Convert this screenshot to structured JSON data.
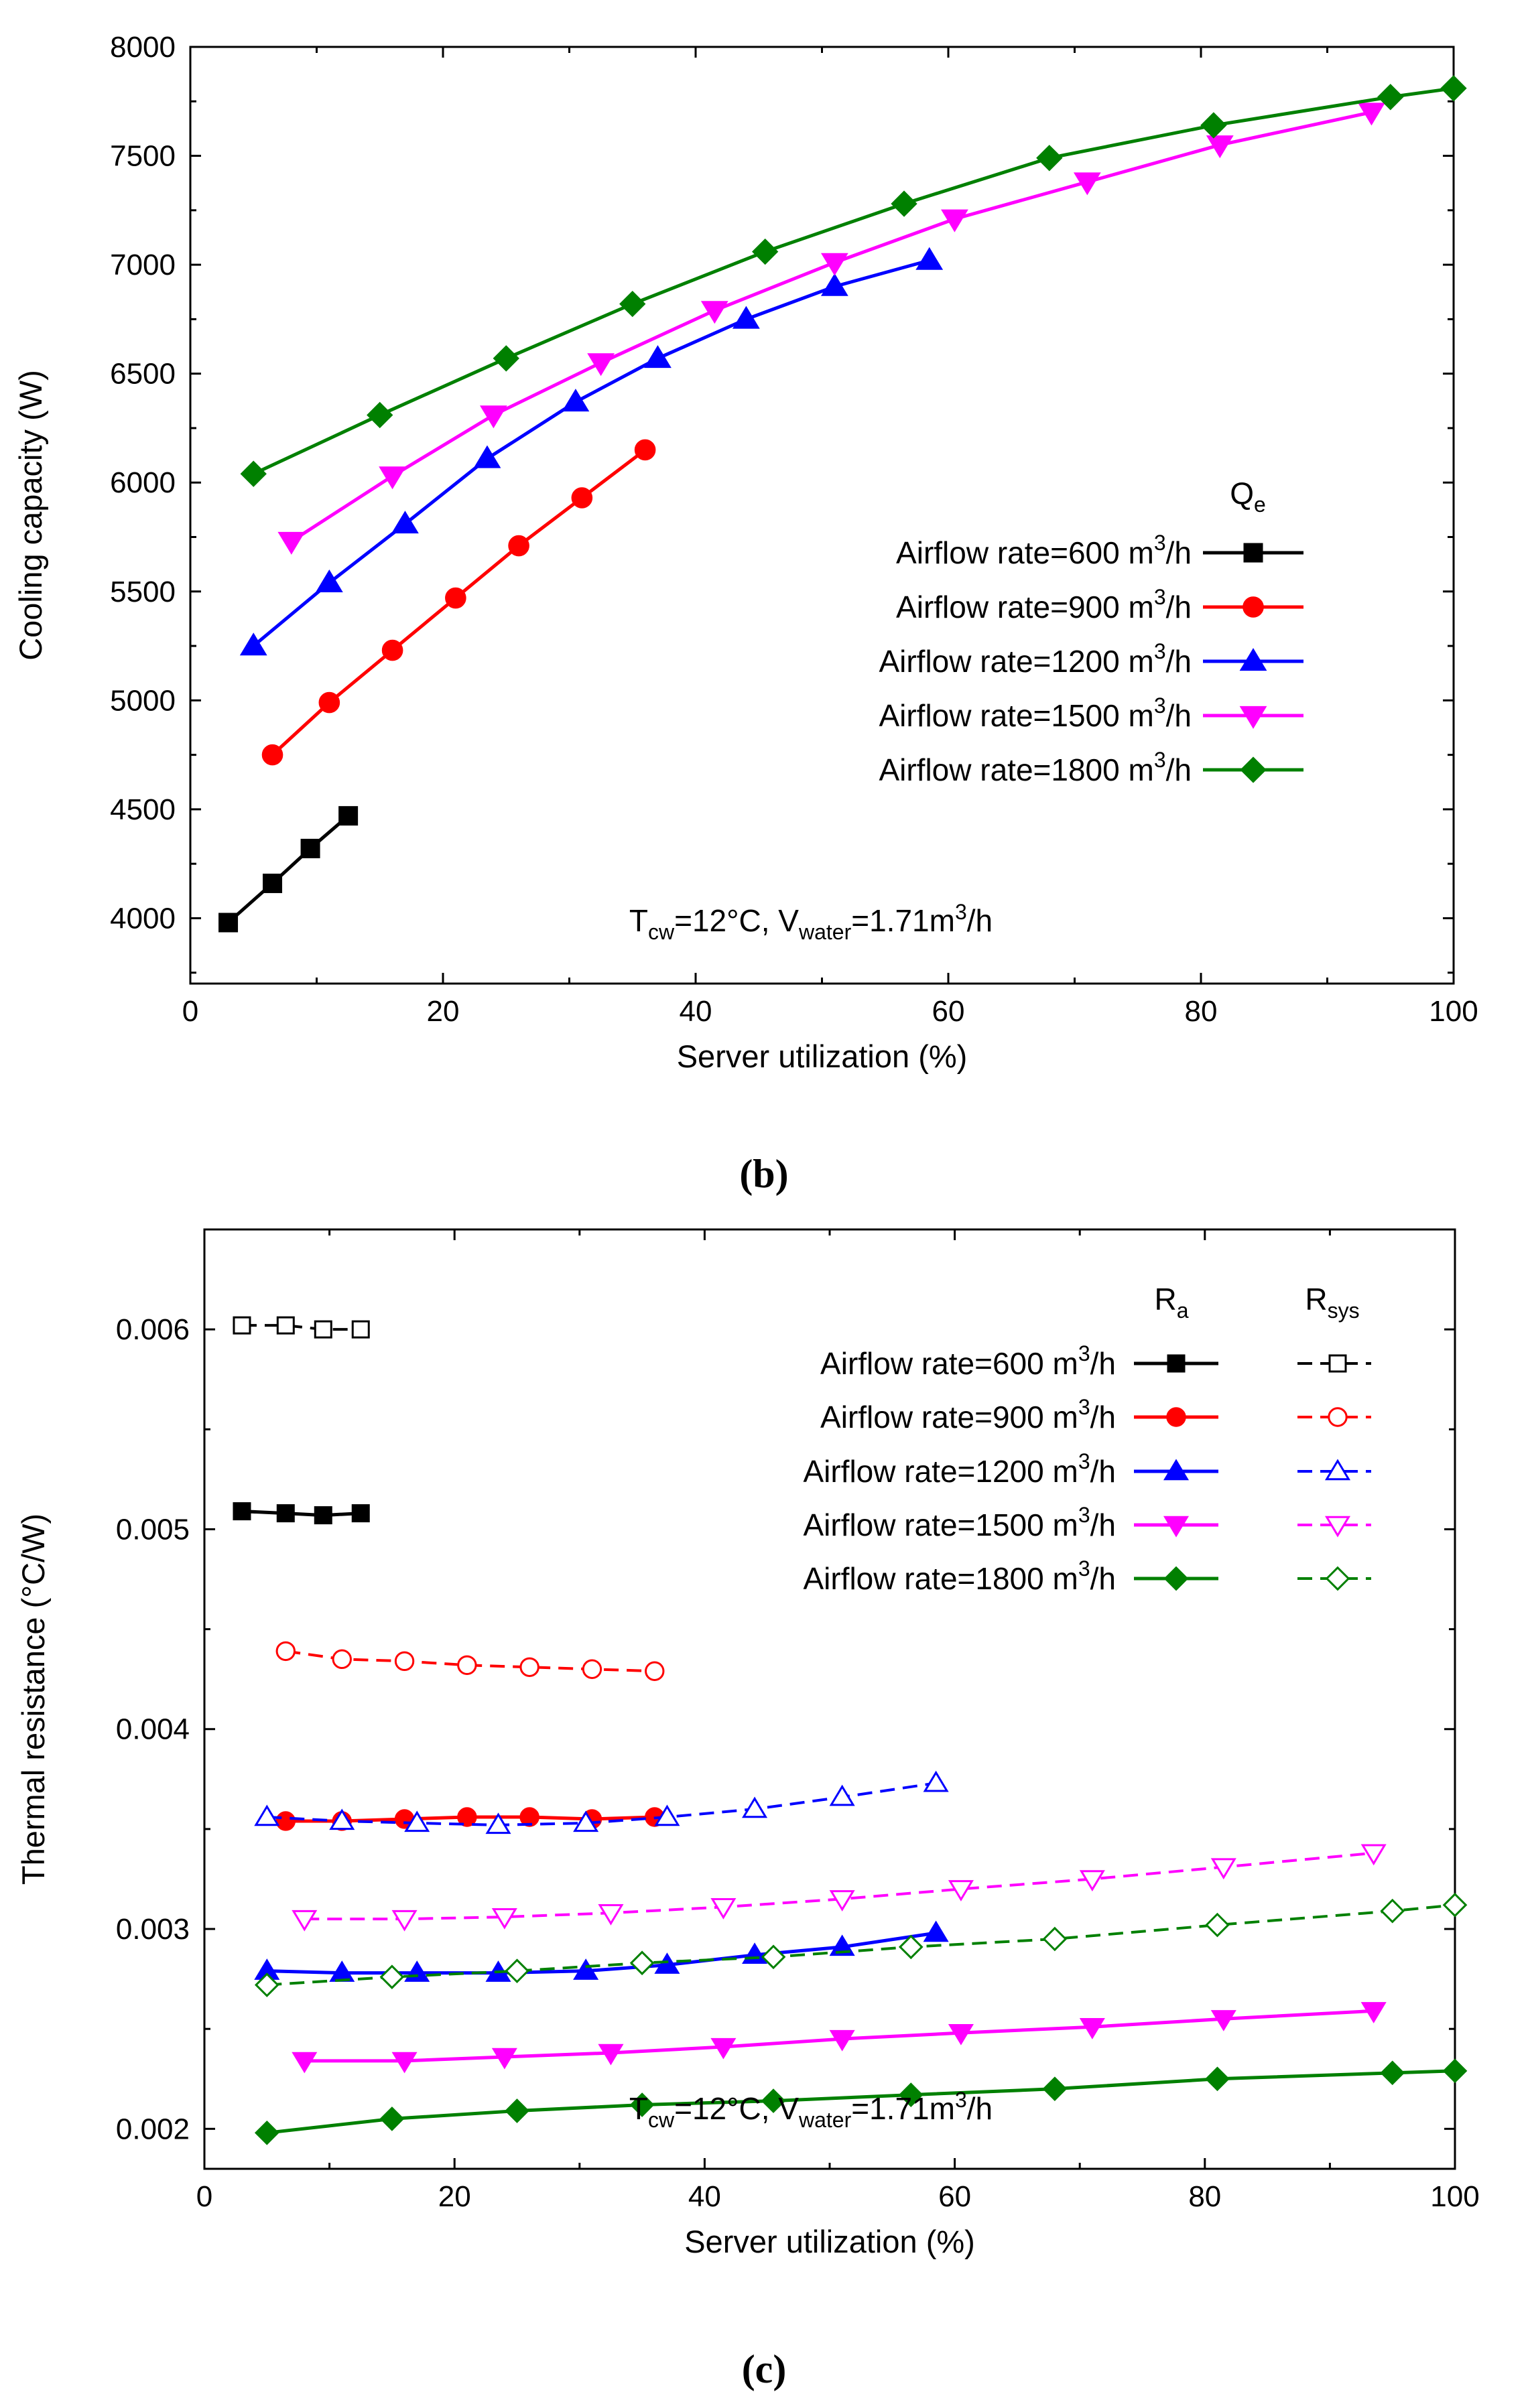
{
  "chart_data": [
    {
      "type": "line",
      "panel_label": "(b)",
      "xlabel": "Server utilization (%)",
      "ylabel": "Cooling capacity (W)",
      "xlim": [
        0,
        100
      ],
      "ylim": [
        3700,
        8000
      ],
      "xticks": [
        0,
        20,
        40,
        60,
        80,
        100
      ],
      "yticks": [
        4000,
        4500,
        5000,
        5500,
        6000,
        6500,
        7000,
        7500,
        8000
      ],
      "legend_title": {
        "base": "Q",
        "sub": "e"
      },
      "annotation": {
        "t": "T",
        "t_sub": "cw",
        "mid": "=12°C, V",
        "v_sub": "water",
        "end": "=1.71m",
        "sup": "3",
        "tail": "/h"
      },
      "series": [
        {
          "name": "Airflow rate=600 m³/h",
          "label_pre": "Airflow rate=600 m",
          "label_sup": "3",
          "label_post": "/h",
          "color": "#000000",
          "marker": "square",
          "x": [
            3,
            6.5,
            9.5,
            12.5
          ],
          "y": [
            3980,
            4160,
            4320,
            4470
          ]
        },
        {
          "name": "Airflow rate=900 m³/h",
          "label_pre": "Airflow rate=900 m",
          "label_sup": "3",
          "label_post": "/h",
          "color": "#ff0000",
          "marker": "circle",
          "x": [
            6.5,
            11,
            16,
            21,
            26,
            31,
            36
          ],
          "y": [
            4750,
            4990,
            5230,
            5470,
            5710,
            5930,
            6150
          ]
        },
        {
          "name": "Airflow rate=1200 m³/h",
          "label_pre": "Airflow rate=1200 m",
          "label_sup": "3",
          "label_post": "/h",
          "color": "#0000ff",
          "marker": "triangle-up",
          "x": [
            5,
            11,
            17,
            23.5,
            30.5,
            37,
            44,
            51,
            58.5
          ],
          "y": [
            5250,
            5540,
            5810,
            6110,
            6370,
            6570,
            6750,
            6900,
            7020
          ]
        },
        {
          "name": "Airflow rate=1500 m³/h",
          "label_pre": "Airflow rate=1500 m",
          "label_sup": "3",
          "label_post": "/h",
          "color": "#ff00ff",
          "marker": "triangle-down",
          "x": [
            8,
            16,
            24,
            32.5,
            41.5,
            51,
            60.5,
            71,
            81.5,
            93.5
          ],
          "y": [
            5730,
            6030,
            6310,
            6550,
            6790,
            7010,
            7210,
            7380,
            7550,
            7700
          ]
        },
        {
          "name": "Airflow rate=1800 m³/h",
          "label_pre": "Airflow rate=1800 m",
          "label_sup": "3",
          "label_post": "/h",
          "color": "#008000",
          "marker": "diamond",
          "x": [
            5,
            15,
            25,
            35,
            45.5,
            56.5,
            68,
            81,
            95,
            100
          ],
          "y": [
            6040,
            6310,
            6570,
            6820,
            7060,
            7280,
            7490,
            7640,
            7770,
            7810
          ]
        }
      ]
    },
    {
      "type": "line",
      "panel_label": "(c)",
      "xlabel": "Server utilization (%)",
      "ylabel": "Thermal resistance (°C/W)",
      "xlim": [
        0,
        100
      ],
      "ylim": [
        0.0018,
        0.0065
      ],
      "xticks": [
        0,
        20,
        40,
        60,
        80,
        100
      ],
      "yticks": [
        0.002,
        0.003,
        0.004,
        0.005,
        0.006
      ],
      "ytick_labels": [
        "0.002",
        "0.003",
        "0.004",
        "0.005",
        "0.006"
      ],
      "legend_col1": {
        "base": "R",
        "sub": "a"
      },
      "legend_col2": {
        "base": "R",
        "sub": "sys"
      },
      "annotation": {
        "t": "T",
        "t_sub": "cw",
        "mid": "=12°C, V",
        "v_sub": "water",
        "end": "=1.71m",
        "sup": "3",
        "tail": "/h"
      },
      "series": [
        {
          "name": "Airflow rate=600 m³/h",
          "label_pre": "Airflow rate=600 m",
          "label_sup": "3",
          "label_post": "/h",
          "color": "#000000",
          "marker": "square",
          "x": [
            3,
            6.5,
            9.5,
            12.5
          ],
          "Ra": [
            0.00509,
            0.00508,
            0.00507,
            0.00508
          ],
          "Rsys": [
            0.00602,
            0.00602,
            0.006,
            0.006
          ]
        },
        {
          "name": "Airflow rate=900 m³/h",
          "label_pre": "Airflow rate=900 m",
          "label_sup": "3",
          "label_post": "/h",
          "color": "#ff0000",
          "marker": "circle",
          "x": [
            6.5,
            11,
            16,
            21,
            26,
            31,
            36
          ],
          "Ra": [
            0.00354,
            0.00354,
            0.00355,
            0.00356,
            0.00356,
            0.00355,
            0.00356
          ],
          "Rsys": [
            0.00439,
            0.00435,
            0.00434,
            0.00432,
            0.00431,
            0.0043,
            0.00429
          ]
        },
        {
          "name": "Airflow rate=1200 m³/h",
          "label_pre": "Airflow rate=1200 m",
          "label_sup": "3",
          "label_post": "/h",
          "color": "#0000ff",
          "marker": "triangle-up",
          "x": [
            5,
            11,
            17,
            23.5,
            30.5,
            37,
            44,
            51,
            58.5
          ],
          "Ra": [
            0.00279,
            0.00278,
            0.00278,
            0.00278,
            0.00279,
            0.00282,
            0.00287,
            0.00291,
            0.00298
          ],
          "Rsys": [
            0.00356,
            0.00354,
            0.00353,
            0.00352,
            0.00353,
            0.00356,
            0.0036,
            0.00366,
            0.00373
          ]
        },
        {
          "name": "Airflow rate=1500 m³/h",
          "label_pre": "Airflow rate=1500 m",
          "label_sup": "3",
          "label_post": "/h",
          "color": "#ff00ff",
          "marker": "triangle-down",
          "x": [
            8,
            16,
            24,
            32.5,
            41.5,
            51,
            60.5,
            71,
            81.5,
            93.5
          ],
          "Ra": [
            0.00234,
            0.00234,
            0.00236,
            0.00238,
            0.00241,
            0.00245,
            0.00248,
            0.00251,
            0.00255,
            0.00259
          ],
          "Rsys": [
            0.00305,
            0.00305,
            0.00306,
            0.00308,
            0.00311,
            0.00315,
            0.0032,
            0.00325,
            0.00331,
            0.00338
          ]
        },
        {
          "name": "Airflow rate=1800 m³/h",
          "label_pre": "Airflow rate=1800 m",
          "label_sup": "3",
          "label_post": "/h",
          "color": "#008000",
          "marker": "diamond",
          "x": [
            5,
            15,
            25,
            35,
            45.5,
            56.5,
            68,
            81,
            95,
            100
          ],
          "Ra": [
            0.00198,
            0.00205,
            0.00209,
            0.00212,
            0.00214,
            0.00217,
            0.0022,
            0.00225,
            0.00228,
            0.00229
          ],
          "Rsys": [
            0.00272,
            0.00276,
            0.00279,
            0.00283,
            0.00286,
            0.00291,
            0.00295,
            0.00302,
            0.00309,
            0.00312
          ]
        }
      ]
    }
  ]
}
